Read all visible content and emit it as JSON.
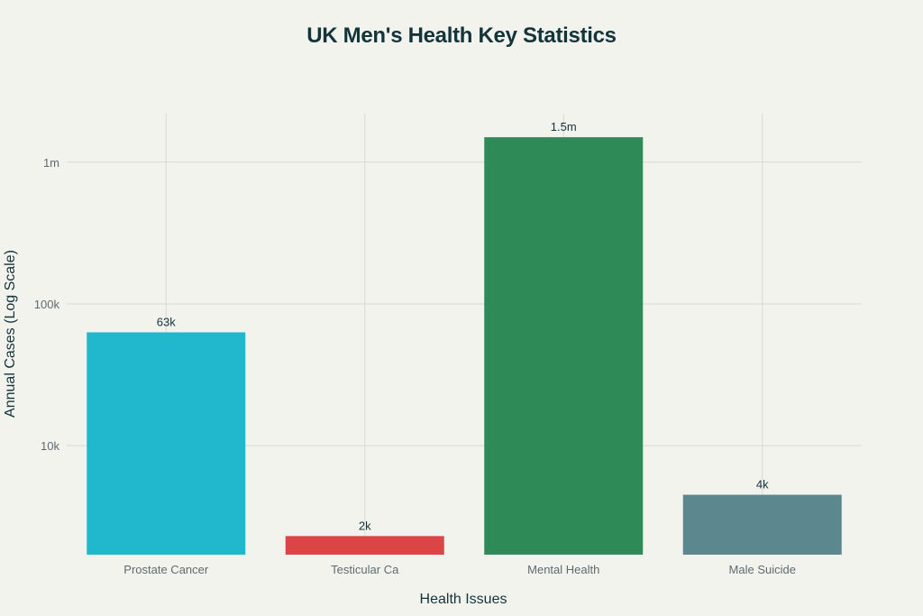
{
  "chart_data": {
    "type": "bar",
    "title": "UK Men's Health Key Statistics",
    "xlabel": "Health Issues",
    "ylabel": "Annual Cases (Log Scale)",
    "yscale": "log",
    "ylim": [
      1700,
      2200000
    ],
    "yticks": [
      {
        "value": 10000,
        "label": "10k"
      },
      {
        "value": 100000,
        "label": "100k"
      },
      {
        "value": 1000000,
        "label": "1m"
      }
    ],
    "categories": [
      "Prostate Cancer",
      "Testicular Ca",
      "Mental Health",
      "Male Suicide"
    ],
    "values": [
      63000,
      2300,
      1500000,
      4500
    ],
    "data_labels": [
      "63k",
      "2k",
      "1.5m",
      "4k"
    ],
    "colors": [
      "#21b8cd",
      "#db4545",
      "#2e8b57",
      "#5d878f"
    ],
    "grid": true
  }
}
